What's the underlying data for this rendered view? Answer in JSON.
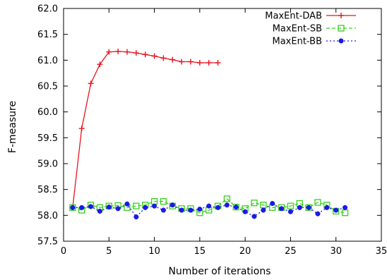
{
  "chart_data": {
    "type": "line",
    "xlabel": "Number of iterations",
    "ylabel": "F-measure",
    "xlim": [
      0,
      35
    ],
    "ylim": [
      57.5,
      62.0
    ],
    "xticks": [
      0,
      5,
      10,
      15,
      20,
      25,
      30,
      35
    ],
    "yticks": [
      57.5,
      58.0,
      58.5,
      59.0,
      59.5,
      60.0,
      60.5,
      61.0,
      61.5,
      62.0
    ],
    "ytick_labels": [
      "57.5",
      "58.0",
      "58.5",
      "59.0",
      "59.5",
      "60.0",
      "60.5",
      "61.0",
      "61.5",
      "62.0"
    ],
    "grid": false,
    "legend_position": "top-right",
    "series": [
      {
        "name": "MaxEnt-DAB",
        "color": "#e8131c",
        "marker": "plus",
        "line_style": "solid",
        "x": [
          1,
          2,
          3,
          4,
          5,
          6,
          7,
          8,
          9,
          10,
          11,
          12,
          13,
          14,
          15,
          16,
          17
        ],
        "y": [
          58.15,
          59.68,
          60.55,
          60.92,
          61.16,
          61.17,
          61.16,
          61.14,
          61.11,
          61.08,
          61.04,
          61.01,
          60.97,
          60.97,
          60.95,
          60.95,
          60.95
        ]
      },
      {
        "name": "MaxEnt-SB",
        "color": "#38d01c",
        "marker": "square",
        "line_style": "dashed",
        "x": [
          1,
          2,
          3,
          4,
          5,
          6,
          7,
          8,
          9,
          10,
          11,
          12,
          13,
          14,
          15,
          16,
          17,
          18,
          19,
          20,
          21,
          22,
          23,
          24,
          25,
          26,
          27,
          28,
          29,
          30,
          31
        ],
        "y": [
          58.15,
          58.1,
          58.2,
          58.15,
          58.18,
          58.19,
          58.15,
          58.18,
          58.2,
          58.27,
          58.27,
          58.18,
          58.13,
          58.13,
          58.05,
          58.1,
          58.18,
          58.32,
          58.16,
          58.13,
          58.24,
          58.2,
          58.15,
          58.15,
          58.18,
          58.23,
          58.15,
          58.25,
          58.2,
          58.08,
          58.05
        ]
      },
      {
        "name": "MaxEnt-BB",
        "color": "#1a1ae6",
        "marker": "circle",
        "line_style": "dotted",
        "x": [
          1,
          2,
          3,
          4,
          5,
          6,
          7,
          8,
          9,
          10,
          11,
          12,
          13,
          14,
          15,
          16,
          17,
          18,
          19,
          20,
          21,
          22,
          23,
          24,
          25,
          26,
          27,
          28,
          29,
          30,
          31
        ],
        "y": [
          58.15,
          58.15,
          58.17,
          58.08,
          58.16,
          58.13,
          58.22,
          57.97,
          58.15,
          58.18,
          58.1,
          58.2,
          58.1,
          58.1,
          58.12,
          58.18,
          58.15,
          58.2,
          58.16,
          58.07,
          57.98,
          58.1,
          58.23,
          58.13,
          58.07,
          58.15,
          58.15,
          58.03,
          58.15,
          58.1,
          58.15
        ]
      }
    ]
  }
}
